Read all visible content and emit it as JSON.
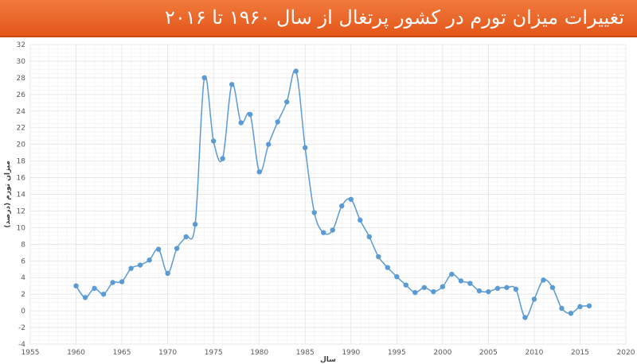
{
  "header": {
    "title": "تغییرات میزان تورم در کشور پرتغال از سال ۱۹۶۰ تا ۲۰۱۶"
  },
  "colors": {
    "banner": "#e9632a",
    "series": "#5b9bd5",
    "grid": "#e3e3e3",
    "gridMinor": "#f0f0f0"
  },
  "chart_data": {
    "type": "scatter",
    "smooth": true,
    "markers": true,
    "xlabel": "سال",
    "ylabel": "میزان تورم (درصد)",
    "xlim": [
      1955,
      2020
    ],
    "ylim": [
      -4,
      32
    ],
    "xticks": [
      1955,
      1960,
      1965,
      1970,
      1975,
      1980,
      1985,
      1990,
      1995,
      2000,
      2005,
      2010,
      2015,
      2020
    ],
    "yticks": [
      -4,
      -2,
      0,
      2,
      4,
      6,
      8,
      10,
      12,
      14,
      16,
      18,
      20,
      22,
      24,
      26,
      28,
      30,
      32
    ],
    "grid": true,
    "legend": "none",
    "series": [
      {
        "x": [
          1960,
          1961,
          1962,
          1963,
          1964,
          1965,
          1966,
          1967,
          1968,
          1969,
          1970,
          1971,
          1972,
          1973,
          1974,
          1975,
          1976,
          1977,
          1978,
          1979,
          1980,
          1981,
          1982,
          1983,
          1984,
          1985,
          1986,
          1987,
          1988,
          1989,
          1990,
          1991,
          1992,
          1993,
          1994,
          1995,
          1996,
          1997,
          1998,
          1999,
          2000,
          2001,
          2002,
          2003,
          2004,
          2005,
          2006,
          2007,
          2008,
          2009,
          2010,
          2011,
          2012,
          2013,
          2014,
          2015,
          2016
        ],
        "y": [
          3.0,
          1.6,
          2.7,
          2.0,
          3.4,
          3.5,
          5.1,
          5.5,
          6.1,
          7.4,
          4.5,
          7.5,
          8.9,
          10.4,
          28.0,
          20.4,
          18.3,
          27.2,
          22.6,
          23.6,
          16.7,
          20.0,
          22.7,
          25.1,
          28.8,
          19.6,
          11.8,
          9.4,
          9.7,
          12.6,
          13.4,
          10.9,
          8.9,
          6.5,
          5.2,
          4.1,
          3.1,
          2.2,
          2.8,
          2.3,
          2.9,
          4.4,
          3.6,
          3.3,
          2.4,
          2.3,
          2.7,
          2.8,
          2.6,
          -0.8,
          1.4,
          3.7,
          2.8,
          0.3,
          -0.3,
          0.5,
          0.6
        ]
      }
    ]
  }
}
